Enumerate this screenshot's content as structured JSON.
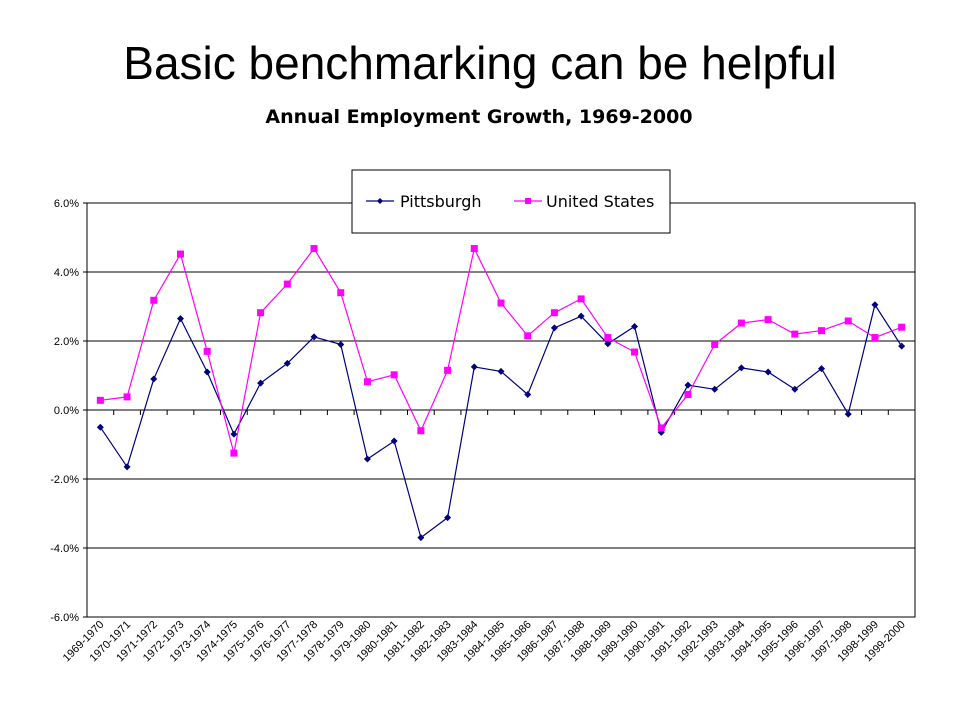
{
  "slide": {
    "title": "Basic benchmarking can be helpful"
  },
  "chart_data": {
    "type": "line",
    "title": "Annual Employment Growth, 1969-2000",
    "xlabel": "",
    "ylabel": "",
    "ylim": [
      -6,
      6
    ],
    "ytick_step": 2,
    "y_unit": "%",
    "grid": true,
    "legend_position": "top-right",
    "categories": [
      "1969-1970",
      "1970-1971",
      "1971-1972",
      "1972-1973",
      "1973-1974",
      "1974-1975",
      "1975-1976",
      "1976-1977",
      "1977-1978",
      "1978-1979",
      "1979-1980",
      "1980-1981",
      "1981-1982",
      "1982-1983",
      "1983-1984",
      "1984-1985",
      "1985-1986",
      "1986-1987",
      "1987-1988",
      "1988-1989",
      "1989-1990",
      "1990-1991",
      "1991-1992",
      "1992-1993",
      "1993-1994",
      "1994-1995",
      "1995-1996",
      "1996-1997",
      "1997-1998",
      "1998-1999",
      "1999-2000"
    ],
    "series": [
      {
        "name": "Pittsburgh",
        "color": "#000080",
        "marker": "diamond",
        "values": [
          -0.5,
          -1.65,
          0.9,
          2.65,
          1.1,
          -0.7,
          0.78,
          1.35,
          2.12,
          1.9,
          -1.42,
          -0.9,
          -3.7,
          -3.12,
          1.25,
          1.12,
          0.45,
          2.38,
          2.72,
          1.92,
          2.42,
          -0.65,
          0.72,
          0.6,
          1.22,
          1.1,
          0.6,
          1.2,
          -0.12,
          3.05,
          1.85
        ]
      },
      {
        "name": "United States",
        "color": "#ff00ff",
        "marker": "square",
        "values": [
          0.28,
          0.38,
          3.18,
          4.52,
          1.7,
          -1.25,
          2.82,
          3.65,
          4.68,
          3.4,
          0.82,
          1.02,
          -0.6,
          1.15,
          4.68,
          3.1,
          2.15,
          2.82,
          3.22,
          2.1,
          1.68,
          -0.52,
          0.45,
          1.9,
          2.52,
          2.62,
          2.2,
          2.3,
          2.58,
          2.1,
          2.4
        ]
      }
    ]
  }
}
